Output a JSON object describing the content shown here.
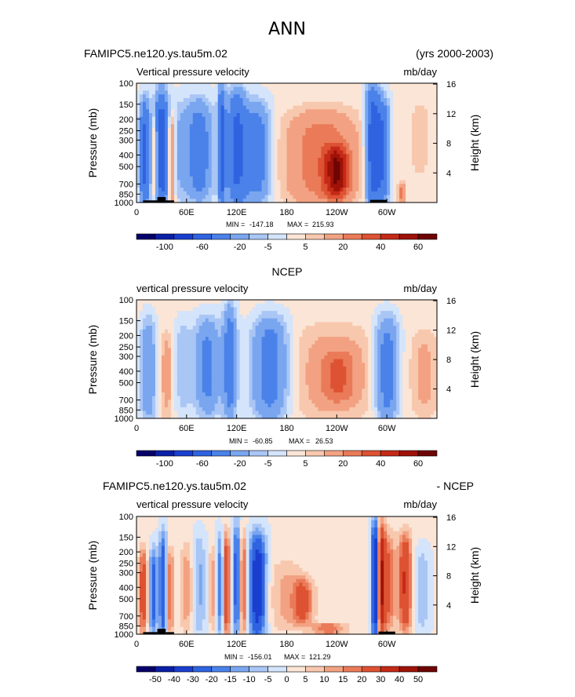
{
  "page": {
    "title": "ANN"
  },
  "colors": {
    "fill": [
      "#08006a",
      "#0b1fa6",
      "#1a3fcf",
      "#2f63e0",
      "#4a82ea",
      "#7aa6f0",
      "#a9c6f5",
      "#d4e4fb",
      "#fbe5d6",
      "#f8c8ae",
      "#f2a282",
      "#ea7a58",
      "#dd5232",
      "#c42a17",
      "#9e1208",
      "#6e0404"
    ],
    "topo": "#000000"
  },
  "chart_data": [
    {
      "type": "heatmap",
      "title_left": "FAMIPC5.ne120.ys.tau5m.02",
      "title_right": "(yrs 2000-2003)",
      "subtitle_left": "Vertical pressure velocity",
      "subtitle_right": "mb/day",
      "ylabel": "Pressure (mb)",
      "ylabel_right": "Height (km)",
      "x_ticks": [
        "0",
        "60E",
        "120E",
        "180",
        "120W",
        "60W"
      ],
      "y_ticks": [
        "100",
        "150",
        "200",
        "250",
        "300",
        "400",
        "500",
        "700",
        "850",
        "1000"
      ],
      "y_right_ticks": [
        "16",
        "12",
        "8",
        "4"
      ],
      "stats": {
        "min_label": "MIN =",
        "min": "-147.18",
        "max_label": "MAX =",
        "max": "215.93"
      },
      "colorbar_labels": [
        "-100",
        "-60",
        "-20",
        "-5",
        "5",
        "20",
        "40",
        "60"
      ],
      "features": [
        {
          "lon": 10,
          "width": 6,
          "value": -45,
          "top": 150,
          "bottom": 1000
        },
        {
          "lon": 22,
          "width": 4,
          "value": 20,
          "top": 200,
          "bottom": 900
        },
        {
          "lon": 30,
          "width": 8,
          "value": -55,
          "top": 130,
          "bottom": 1000
        },
        {
          "lon": 42,
          "width": 4,
          "value": 30,
          "top": 200,
          "bottom": 950
        },
        {
          "lon": 52,
          "width": 10,
          "value": -10,
          "top": 150,
          "bottom": 900
        },
        {
          "lon": 75,
          "width": 16,
          "value": -30,
          "top": 150,
          "bottom": 900
        },
        {
          "lon": 102,
          "width": 4,
          "value": -50,
          "top": 120,
          "bottom": 1000
        },
        {
          "lon": 120,
          "width": 12,
          "value": -45,
          "top": 130,
          "bottom": 1000
        },
        {
          "lon": 145,
          "width": 16,
          "value": -30,
          "top": 160,
          "bottom": 950
        },
        {
          "lon": 222,
          "width": 44,
          "value": 25,
          "top": 180,
          "bottom": 1000
        },
        {
          "lon": 240,
          "width": 14,
          "value": 40,
          "top": 350,
          "bottom": 900
        },
        {
          "lon": 283,
          "width": 8,
          "value": -55,
          "top": 120,
          "bottom": 1000
        },
        {
          "lon": 295,
          "width": 8,
          "value": -40,
          "top": 150,
          "bottom": 950
        },
        {
          "lon": 318,
          "width": 4,
          "value": 25,
          "top": 700,
          "bottom": 1000
        },
        {
          "lon": 340,
          "width": 20,
          "value": 5,
          "top": 120,
          "bottom": 700
        }
      ],
      "topography": [
        {
          "lon_start": 8,
          "lon_end": 25,
          "top": 960
        },
        {
          "lon_start": 25,
          "lon_end": 35,
          "top": 900
        },
        {
          "lon_start": 35,
          "lon_end": 45,
          "top": 960
        },
        {
          "lon_start": 280,
          "lon_end": 300,
          "top": 950
        }
      ]
    },
    {
      "type": "heatmap",
      "title_center": "NCEP",
      "subtitle_left": "vertical pressure velocity",
      "subtitle_right": "mb/day",
      "ylabel": "Pressure (mb)",
      "ylabel_right": "Height (km)",
      "x_ticks": [
        "0",
        "60E",
        "120E",
        "180",
        "120W",
        "60W"
      ],
      "y_ticks": [
        "100",
        "150",
        "200",
        "250",
        "300",
        "400",
        "500",
        "700",
        "850",
        "1000"
      ],
      "y_right_ticks": [
        "16",
        "12",
        "8",
        "4"
      ],
      "stats": {
        "min_label": "MIN =",
        "min": "-60.85",
        "max_label": "MAX =",
        "max": "26.53"
      },
      "colorbar_labels": [
        "-100",
        "-60",
        "-20",
        "-5",
        "5",
        "20",
        "40",
        "60"
      ],
      "features": [
        {
          "lon": 14,
          "width": 10,
          "value": -20,
          "top": 150,
          "bottom": 1000
        },
        {
          "lon": 36,
          "width": 8,
          "value": 12,
          "top": 200,
          "bottom": 900
        },
        {
          "lon": 55,
          "width": 10,
          "value": -10,
          "top": 150,
          "bottom": 900
        },
        {
          "lon": 85,
          "width": 16,
          "value": -25,
          "top": 150,
          "bottom": 900
        },
        {
          "lon": 112,
          "width": 8,
          "value": -30,
          "top": 120,
          "bottom": 950
        },
        {
          "lon": 160,
          "width": 22,
          "value": -30,
          "top": 150,
          "bottom": 950
        },
        {
          "lon": 235,
          "width": 48,
          "value": 12,
          "top": 180,
          "bottom": 950
        },
        {
          "lon": 242,
          "width": 20,
          "value": 20,
          "top": 280,
          "bottom": 700
        },
        {
          "lon": 300,
          "width": 14,
          "value": -30,
          "top": 150,
          "bottom": 1000
        },
        {
          "lon": 345,
          "width": 16,
          "value": 10,
          "top": 200,
          "bottom": 900
        }
      ],
      "topography": []
    },
    {
      "type": "heatmap",
      "title_left": "FAMIPC5.ne120.ys.tau5m.02",
      "title_right": "- NCEP",
      "subtitle_left": "vertical pressure velocity",
      "subtitle_right": "mb/day",
      "ylabel": "Pressure (mb)",
      "ylabel_right": "Height (km)",
      "x_ticks": [
        "0",
        "60E",
        "120E",
        "180",
        "120W",
        "60W"
      ],
      "y_ticks": [
        "100",
        "150",
        "200",
        "250",
        "300",
        "400",
        "500",
        "700",
        "850",
        "1000"
      ],
      "y_right_ticks": [
        "16",
        "12",
        "8",
        "4"
      ],
      "stats": {
        "min_label": "MIN =",
        "min": "-156.01",
        "max_label": "MAX =",
        "max": "121.29"
      },
      "colorbar_labels": [
        "-50",
        "-40",
        "-30",
        "-20",
        "-15",
        "-10",
        "-5",
        "0",
        "5",
        "10",
        "15",
        "20",
        "30",
        "40",
        "50"
      ],
      "features": [
        {
          "lon": 8,
          "width": 5,
          "value": 25,
          "top": 200,
          "bottom": 950
        },
        {
          "lon": 20,
          "width": 5,
          "value": -25,
          "top": 200,
          "bottom": 950
        },
        {
          "lon": 32,
          "width": 5,
          "value": -30,
          "top": 150,
          "bottom": 1000
        },
        {
          "lon": 40,
          "width": 5,
          "value": 20,
          "top": 200,
          "bottom": 950
        },
        {
          "lon": 60,
          "width": 8,
          "value": 12,
          "top": 180,
          "bottom": 900
        },
        {
          "lon": 75,
          "width": 8,
          "value": -12,
          "top": 150,
          "bottom": 950
        },
        {
          "lon": 92,
          "width": 5,
          "value": 12,
          "top": 180,
          "bottom": 900
        },
        {
          "lon": 100,
          "width": 5,
          "value": -20,
          "top": 150,
          "bottom": 1000
        },
        {
          "lon": 108,
          "width": 4,
          "value": 30,
          "top": 150,
          "bottom": 1000
        },
        {
          "lon": 120,
          "width": 5,
          "value": -25,
          "top": 120,
          "bottom": 1000
        },
        {
          "lon": 128,
          "width": 4,
          "value": 25,
          "top": 150,
          "bottom": 950
        },
        {
          "lon": 145,
          "width": 10,
          "value": -40,
          "top": 150,
          "bottom": 1000
        },
        {
          "lon": 180,
          "width": 22,
          "value": 10,
          "top": 250,
          "bottom": 900
        },
        {
          "lon": 200,
          "width": 12,
          "value": 20,
          "top": 350,
          "bottom": 800
        },
        {
          "lon": 230,
          "width": 20,
          "value": 18,
          "top": 800,
          "bottom": 1000
        },
        {
          "lon": 286,
          "width": 4,
          "value": -50,
          "top": 120,
          "bottom": 1000
        },
        {
          "lon": 293,
          "width": 5,
          "value": 35,
          "top": 120,
          "bottom": 1000
        },
        {
          "lon": 302,
          "width": 8,
          "value": 20,
          "top": 150,
          "bottom": 900
        },
        {
          "lon": 322,
          "width": 8,
          "value": 30,
          "top": 150,
          "bottom": 900
        },
        {
          "lon": 342,
          "width": 10,
          "value": -10,
          "top": 200,
          "bottom": 900
        }
      ],
      "topography": [
        {
          "lon_start": 8,
          "lon_end": 25,
          "top": 960
        },
        {
          "lon_start": 25,
          "lon_end": 35,
          "top": 900
        },
        {
          "lon_start": 35,
          "lon_end": 45,
          "top": 960
        },
        {
          "lon_start": 290,
          "lon_end": 310,
          "top": 950
        }
      ]
    }
  ]
}
